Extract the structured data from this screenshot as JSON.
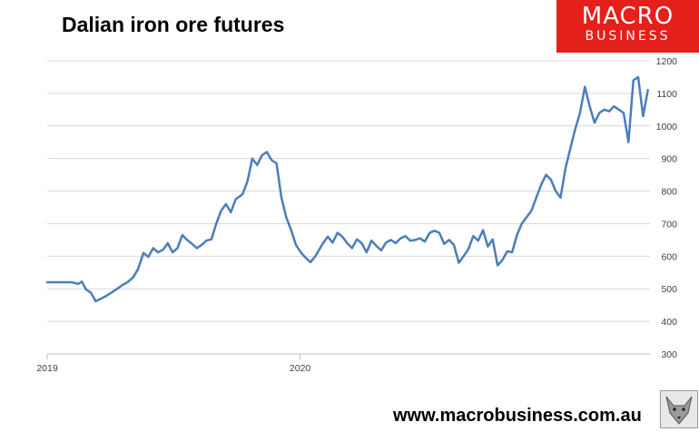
{
  "title": "Dalian iron ore futures",
  "logo": {
    "line1": "MACRO",
    "line2": "BUSINESS"
  },
  "footer_url": "www.macrobusiness.com.au",
  "colors": {
    "line": "#4a7ebb",
    "logo_bg": "#e3201b",
    "grid": "#d9d9d9"
  },
  "chart_data": {
    "type": "line",
    "title": "Dalian iron ore futures",
    "xlabel": "",
    "ylabel": "",
    "y_axis_position": "right",
    "ylim": [
      300,
      1200
    ],
    "yticks": [
      300,
      400,
      500,
      600,
      700,
      800,
      900,
      1000,
      1100,
      1200
    ],
    "xlim": [
      "2019-01-01",
      "2021-05-20"
    ],
    "xticks": [
      {
        "date": "2019-01-01",
        "label": "2019"
      },
      {
        "date": "2020-01-01",
        "label": "2020"
      }
    ],
    "grid": true,
    "legend": "none",
    "series": [
      {
        "x": [
          "2019-01-01",
          "2019-01-20",
          "2019-02-05",
          "2019-02-15",
          "2019-02-20",
          "2019-02-26",
          "2019-03-05",
          "2019-03-12",
          "2019-03-20",
          "2019-03-27",
          "2019-04-05",
          "2019-04-12",
          "2019-04-20",
          "2019-04-27",
          "2019-05-05",
          "2019-05-12",
          "2019-05-20",
          "2019-05-27",
          "2019-06-03",
          "2019-06-10",
          "2019-06-17",
          "2019-06-24",
          "2019-07-01",
          "2019-07-08",
          "2019-07-15",
          "2019-07-22",
          "2019-07-29",
          "2019-08-05",
          "2019-08-12",
          "2019-08-19",
          "2019-08-26",
          "2019-09-02",
          "2019-09-09",
          "2019-09-16",
          "2019-09-23",
          "2019-09-30",
          "2019-10-10",
          "2019-10-17",
          "2019-10-24",
          "2019-10-31",
          "2019-11-07",
          "2019-11-14",
          "2019-11-21",
          "2019-11-28",
          "2019-12-05",
          "2019-12-12",
          "2019-12-19",
          "2019-12-26",
          "2020-01-02",
          "2020-01-09",
          "2020-01-16",
          "2020-01-23",
          "2020-02-03",
          "2020-02-10",
          "2020-02-17",
          "2020-02-24",
          "2020-03-02",
          "2020-03-09",
          "2020-03-16",
          "2020-03-23",
          "2020-03-30",
          "2020-04-06",
          "2020-04-13",
          "2020-04-20",
          "2020-04-27",
          "2020-05-04",
          "2020-05-11",
          "2020-05-18",
          "2020-05-25",
          "2020-06-01",
          "2020-06-08",
          "2020-06-15",
          "2020-06-22",
          "2020-06-29",
          "2020-07-06",
          "2020-07-13",
          "2020-07-20",
          "2020-07-27",
          "2020-08-03",
          "2020-08-10",
          "2020-08-17",
          "2020-08-24",
          "2020-08-31",
          "2020-09-07",
          "2020-09-14",
          "2020-09-21",
          "2020-09-28",
          "2020-10-05",
          "2020-10-12",
          "2020-10-19",
          "2020-10-26",
          "2020-11-02",
          "2020-11-09",
          "2020-11-16",
          "2020-11-23",
          "2020-11-30",
          "2020-12-07",
          "2020-12-14",
          "2020-12-21",
          "2020-12-28",
          "2021-01-04",
          "2021-01-11",
          "2021-01-18",
          "2021-01-25",
          "2021-02-01",
          "2021-02-08",
          "2021-02-15",
          "2021-02-22",
          "2021-03-01",
          "2021-03-08",
          "2021-03-15",
          "2021-03-22",
          "2021-03-29",
          "2021-04-05",
          "2021-04-12",
          "2021-04-19",
          "2021-04-26",
          "2021-05-03",
          "2021-05-10",
          "2021-05-17"
        ],
        "y": [
          520,
          520,
          520,
          515,
          522,
          498,
          488,
          462,
          470,
          478,
          490,
          500,
          512,
          520,
          535,
          560,
          610,
          598,
          625,
          612,
          620,
          640,
          612,
          625,
          665,
          650,
          638,
          625,
          635,
          648,
          652,
          700,
          740,
          760,
          735,
          775,
          790,
          830,
          900,
          880,
          910,
          920,
          895,
          885,
          780,
          720,
          680,
          635,
          612,
          595,
          582,
          600,
          640,
          660,
          642,
          672,
          660,
          640,
          625,
          652,
          640,
          612,
          648,
          632,
          618,
          642,
          650,
          640,
          655,
          662,
          648,
          650,
          655,
          645,
          672,
          678,
          672,
          638,
          650,
          635,
          580,
          600,
          622,
          662,
          648,
          680,
          630,
          652,
          572,
          588,
          615,
          612,
          665,
          700,
          720,
          740,
          780,
          820,
          850,
          835,
          800,
          780,
          870,
          930,
          990,
          1040,
          1120,
          1060,
          1010,
          1040,
          1050,
          1045,
          1060,
          1050,
          1040,
          950,
          1140,
          1150,
          1030,
          1110
        ]
      }
    ]
  }
}
